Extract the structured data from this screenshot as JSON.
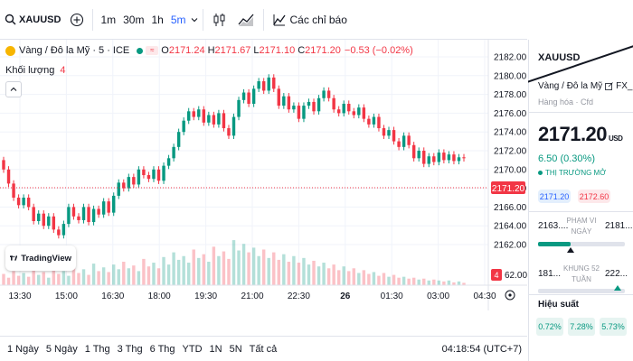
{
  "colors": {
    "up": "#089981",
    "down": "#f23645",
    "accent": "#2962ff",
    "grid": "#f0f3fa"
  },
  "toolbar": {
    "symbol": "XAUUSD",
    "intervals": [
      "1m",
      "30m",
      "1h",
      "5m"
    ],
    "active_interval": "5m",
    "indicators_label": "Các chỉ báo"
  },
  "legend": {
    "title": "Vàng / Đô la Mỹ · 5 · ICE",
    "open_key": "O",
    "open": "2171.24",
    "high_key": "H",
    "high": "2171.67",
    "low_key": "L",
    "low": "2171.10",
    "close_key": "C",
    "close": "2171.20",
    "change": "−0.53 (−0.02%)",
    "volume_label": "Khối lượng",
    "volume_value": "4"
  },
  "logo": {
    "text": "TradingView"
  },
  "chart_data": {
    "type": "candlestick",
    "interval": "5m",
    "y_ticks": [
      "2182.00",
      "2180.00",
      "2178.00",
      "2176.00",
      "2174.00",
      "2172.00",
      "2170.00",
      "2168.00",
      "2166.00",
      "2164.00",
      "2162.00"
    ],
    "ylim": [
      2162,
      2182
    ],
    "x_ticks": [
      "13:30",
      "15:00",
      "16:30",
      "18:00",
      "19:30",
      "21:00",
      "22:30",
      "26",
      "01:30",
      "03:00",
      "04:30"
    ],
    "last_price": "2171.20",
    "last_volume": "4",
    "volume_axis_label": "62.00",
    "candles": [
      [
        2171.0,
        2170.0
      ],
      [
        2170.0,
        2168.5
      ],
      [
        2168.5,
        2167.0
      ],
      [
        2167.0,
        2166.2
      ],
      [
        2166.2,
        2167.0
      ],
      [
        2167.0,
        2166.0
      ],
      [
        2166.0,
        2164.5
      ],
      [
        2164.5,
        2165.3
      ],
      [
        2165.3,
        2164.0
      ],
      [
        2164.0,
        2165.0
      ],
      [
        2165.0,
        2163.6
      ],
      [
        2163.6,
        2163.0
      ],
      [
        2163.0,
        2164.2
      ],
      [
        2164.2,
        2166.0
      ],
      [
        2166.0,
        2165.0
      ],
      [
        2165.0,
        2164.6
      ],
      [
        2164.6,
        2166.0
      ],
      [
        2166.0,
        2164.4
      ],
      [
        2164.4,
        2165.8
      ],
      [
        2165.8,
        2165.2
      ],
      [
        2165.2,
        2166.6
      ],
      [
        2166.6,
        2165.4
      ],
      [
        2165.4,
        2167.2
      ],
      [
        2167.2,
        2168.6
      ],
      [
        2168.6,
        2168.0
      ],
      [
        2168.0,
        2169.2
      ],
      [
        2169.2,
        2168.4
      ],
      [
        2168.4,
        2170.0
      ],
      [
        2170.0,
        2169.4
      ],
      [
        2169.4,
        2169.0
      ],
      [
        2169.0,
        2170.0
      ],
      [
        2170.0,
        2168.8
      ],
      [
        2168.8,
        2170.4
      ],
      [
        2170.4,
        2171.2
      ],
      [
        2171.2,
        2172.4
      ],
      [
        2172.4,
        2174.0
      ],
      [
        2174.0,
        2175.2
      ],
      [
        2175.2,
        2176.2
      ],
      [
        2176.2,
        2175.6
      ],
      [
        2175.6,
        2176.4
      ],
      [
        2176.4,
        2175.0
      ],
      [
        2175.0,
        2175.8
      ],
      [
        2175.8,
        2174.8
      ],
      [
        2174.8,
        2176.0
      ],
      [
        2176.0,
        2174.4
      ],
      [
        2174.4,
        2173.6
      ],
      [
        2173.6,
        2175.6
      ],
      [
        2175.6,
        2177.4
      ],
      [
        2177.4,
        2178.2
      ],
      [
        2178.2,
        2177.0
      ],
      [
        2177.0,
        2178.6
      ],
      [
        2178.6,
        2179.4
      ],
      [
        2179.4,
        2178.4
      ],
      [
        2178.4,
        2179.8
      ],
      [
        2179.8,
        2178.6
      ],
      [
        2178.6,
        2176.8
      ],
      [
        2176.8,
        2177.8
      ],
      [
        2177.8,
        2176.4
      ],
      [
        2176.4,
        2176.8
      ],
      [
        2176.8,
        2175.4
      ],
      [
        2175.4,
        2176.8
      ],
      [
        2176.8,
        2177.2
      ],
      [
        2177.2,
        2176.2
      ],
      [
        2176.2,
        2177.6
      ],
      [
        2177.6,
        2178.4
      ],
      [
        2178.4,
        2177.6
      ],
      [
        2177.6,
        2176.4
      ],
      [
        2176.4,
        2176.0
      ],
      [
        2176.0,
        2177.0
      ],
      [
        2177.0,
        2176.2
      ],
      [
        2176.2,
        2175.8
      ],
      [
        2175.8,
        2176.6
      ],
      [
        2176.6,
        2175.4
      ],
      [
        2175.4,
        2174.8
      ],
      [
        2174.8,
        2175.6
      ],
      [
        2175.6,
        2174.4
      ],
      [
        2174.4,
        2173.6
      ],
      [
        2173.6,
        2174.2
      ],
      [
        2174.2,
        2173.0
      ],
      [
        2173.0,
        2172.4
      ],
      [
        2172.4,
        2173.6
      ],
      [
        2173.6,
        2172.6
      ],
      [
        2172.6,
        2171.2
      ],
      [
        2171.2,
        2172.0
      ],
      [
        2172.0,
        2170.6
      ],
      [
        2170.6,
        2171.4
      ],
      [
        2171.4,
        2170.8
      ],
      [
        2170.8,
        2171.8
      ],
      [
        2171.8,
        2171.0
      ],
      [
        2171.0,
        2171.6
      ],
      [
        2171.6,
        2170.9
      ],
      [
        2170.9,
        2171.3
      ],
      [
        2171.3,
        2171.2
      ]
    ],
    "volumes": [
      0.24,
      0.16,
      0.3,
      0.2,
      0.26,
      0.18,
      0.34,
      0.22,
      0.28,
      0.16,
      0.36,
      0.24,
      0.3,
      0.2,
      0.4,
      0.26,
      0.34,
      0.22,
      0.46,
      0.3,
      0.38,
      0.28,
      0.44,
      0.34,
      0.5,
      0.36,
      0.42,
      0.3,
      0.56,
      0.4,
      0.48,
      0.36,
      0.6,
      0.44,
      0.7,
      0.54,
      0.62,
      0.48,
      0.76,
      0.58,
      0.66,
      0.5,
      0.82,
      0.62,
      0.72,
      0.56,
      0.96,
      0.74,
      0.88,
      0.7,
      0.8,
      0.62,
      0.76,
      0.58,
      0.7,
      0.54,
      0.66,
      0.5,
      0.62,
      0.48,
      0.58,
      0.44,
      0.52,
      0.4,
      0.48,
      0.36,
      0.44,
      0.32,
      0.4,
      0.3,
      0.36,
      0.26,
      0.32,
      0.24,
      0.28,
      0.2,
      0.26,
      0.18,
      0.22,
      0.16,
      0.18,
      0.14,
      0.16,
      0.12,
      0.14,
      0.1,
      0.12,
      0.1,
      0.08,
      0.1,
      0.06,
      0.08,
      0.05
    ]
  },
  "bottom": {
    "ranges": [
      "1 Ngày",
      "5 Ngày",
      "1 Thg",
      "3 Thg",
      "6 Thg",
      "YTD",
      "1N",
      "5N",
      "Tất cả"
    ],
    "clock": "04:18:54 (UTC+7)"
  },
  "panel": {
    "symbol": "XAUUSD",
    "description": "Vàng / Đô la Mỹ",
    "source": "FX_IDC",
    "category": "Hàng hóa · Cfd",
    "price": "2171.20",
    "currency": "USD",
    "change": "6.50 (0.30%)",
    "market_status": "THỊ TRƯỜNG MỞ",
    "bid": "2171.20",
    "ask": "2172.60",
    "day_low": "2163....",
    "day_high": "2181....",
    "day_label": "PHẠM VI NGÀY",
    "day_pos": 0.38,
    "wk_low": "181...",
    "wk_high": "222...",
    "wk_label": "KHUNG 52 TUẦN",
    "wk_pos": 0.92,
    "perf_title": "Hiệu suất",
    "perf": [
      "0.72%",
      "7.28%",
      "5.73%"
    ]
  }
}
